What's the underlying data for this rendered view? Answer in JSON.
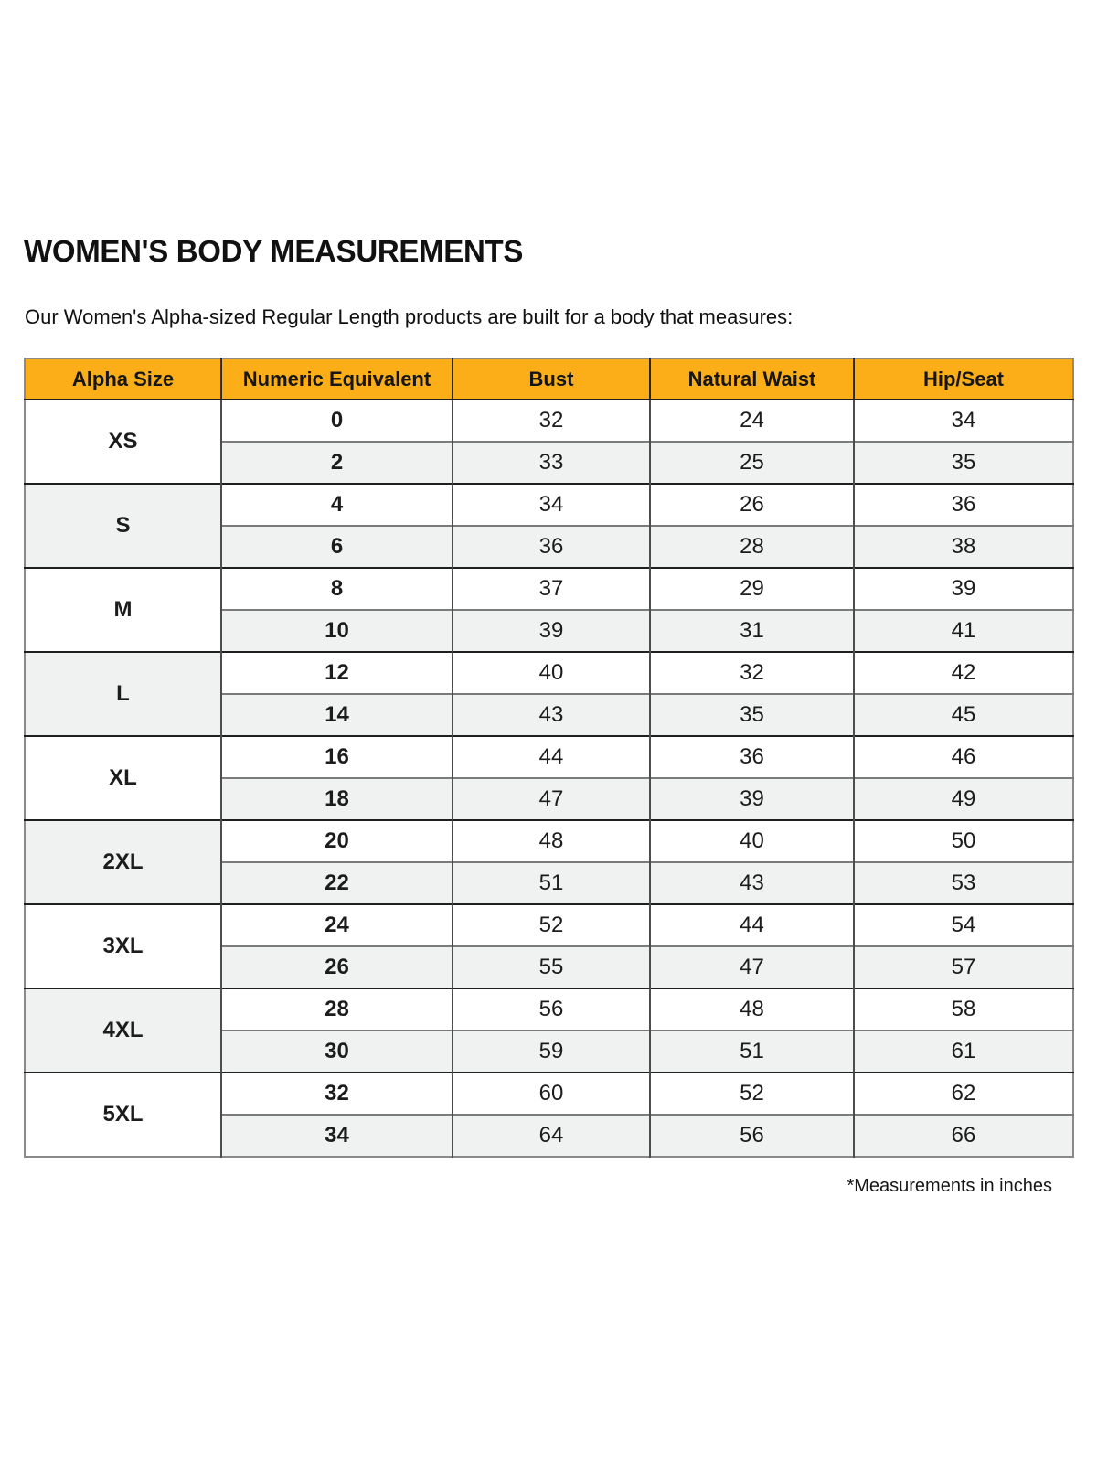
{
  "page": {
    "title": "WOMEN'S BODY MEASUREMENTS",
    "subtitle": "Our Women's Alpha-sized Regular Length products are built for a body that measures:",
    "footnote": "*Measurements in inches"
  },
  "colors": {
    "header_bg": "#FBAE17",
    "row_alt_bg": "#F0F1F1",
    "text": "#1C1C1C",
    "outer_border": "#8A8A8A",
    "column_border": "#4D4D4D",
    "group_separator": "#1F1F1F",
    "subrow_separator": "#7B7B7B"
  },
  "chart_data": {
    "type": "table",
    "title": "WOMEN'S BODY MEASUREMENTS",
    "headers": [
      "Alpha Size",
      "Numeric Equivalent",
      "Bust",
      "Natural Waist",
      "Hip/Seat"
    ],
    "units": "inches",
    "groups": [
      {
        "alpha": "XS",
        "rows": [
          [
            "0",
            "32",
            "24",
            "34"
          ],
          [
            "2",
            "33",
            "25",
            "35"
          ]
        ]
      },
      {
        "alpha": "S",
        "rows": [
          [
            "4",
            "34",
            "26",
            "36"
          ],
          [
            "6",
            "36",
            "28",
            "38"
          ]
        ]
      },
      {
        "alpha": "M",
        "rows": [
          [
            "8",
            "37",
            "29",
            "39"
          ],
          [
            "10",
            "39",
            "31",
            "41"
          ]
        ]
      },
      {
        "alpha": "L",
        "rows": [
          [
            "12",
            "40",
            "32",
            "42"
          ],
          [
            "14",
            "43",
            "35",
            "45"
          ]
        ]
      },
      {
        "alpha": "XL",
        "rows": [
          [
            "16",
            "44",
            "36",
            "46"
          ],
          [
            "18",
            "47",
            "39",
            "49"
          ]
        ]
      },
      {
        "alpha": "2XL",
        "rows": [
          [
            "20",
            "48",
            "40",
            "50"
          ],
          [
            "22",
            "51",
            "43",
            "53"
          ]
        ]
      },
      {
        "alpha": "3XL",
        "rows": [
          [
            "24",
            "52",
            "44",
            "54"
          ],
          [
            "26",
            "55",
            "47",
            "57"
          ]
        ]
      },
      {
        "alpha": "4XL",
        "rows": [
          [
            "28",
            "56",
            "48",
            "58"
          ],
          [
            "30",
            "59",
            "51",
            "61"
          ]
        ]
      },
      {
        "alpha": "5XL",
        "rows": [
          [
            "32",
            "60",
            "52",
            "62"
          ],
          [
            "34",
            "64",
            "56",
            "66"
          ]
        ]
      }
    ]
  }
}
